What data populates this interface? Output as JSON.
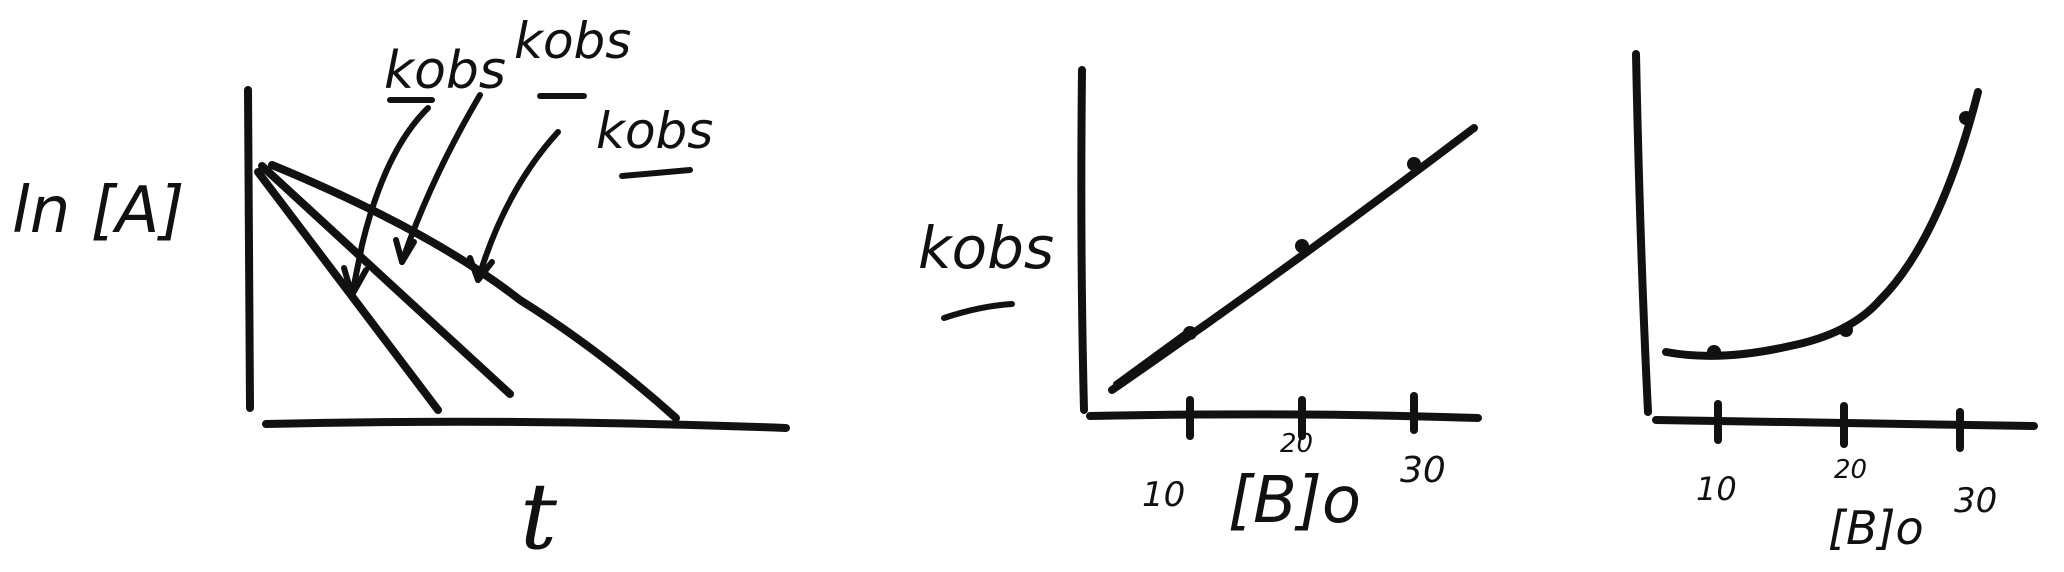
{
  "ink_color": "#111111",
  "chart_data": [
    {
      "type": "line",
      "title": "",
      "ylabel": "ln [A]",
      "xlabel": "t",
      "grid": false,
      "series": [
        {
          "label": "kobs",
          "x": [
            0,
            1
          ],
          "y": [
            1,
            0
          ]
        },
        {
          "label": "kobs",
          "x": [
            0,
            1.5
          ],
          "y": [
            1,
            0
          ]
        },
        {
          "label": "kobs",
          "x": [
            0,
            2.3
          ],
          "y": [
            1,
            0
          ]
        }
      ],
      "annotations": [
        "kobs",
        "kobs",
        "kobs"
      ]
    },
    {
      "type": "scatter",
      "title": "",
      "ylabel": "kobs",
      "xlabel": "[B]o",
      "grid": false,
      "x_ticks": [
        "10",
        "20",
        "30"
      ],
      "points": [
        {
          "x": 10,
          "y": 1
        },
        {
          "x": 20,
          "y": 2
        },
        {
          "x": 30,
          "y": 3
        }
      ],
      "trend": "linear"
    },
    {
      "type": "scatter",
      "title": "",
      "ylabel": "",
      "xlabel": "[B]o",
      "grid": false,
      "x_ticks": [
        "10",
        "20",
        "30"
      ],
      "points": [
        {
          "x": 10,
          "y": 0.3
        },
        {
          "x": 20,
          "y": 0.8
        },
        {
          "x": 30,
          "y": 4
        }
      ],
      "trend": "curved-up"
    }
  ]
}
